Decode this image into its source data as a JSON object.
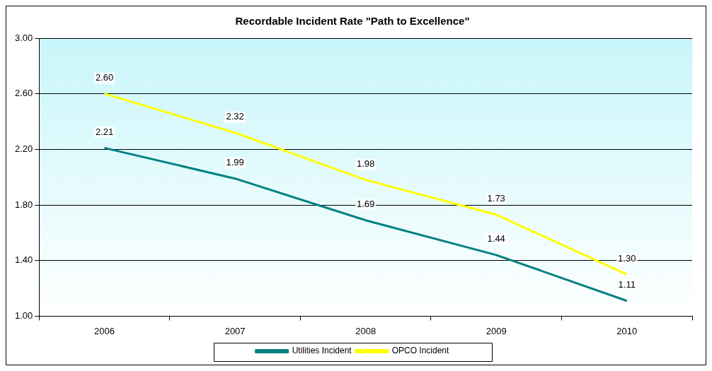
{
  "chart_data": {
    "type": "line",
    "title": "Recordable Incident Rate \"Path to Excellence\"",
    "categories": [
      "2006",
      "2007",
      "2008",
      "2009",
      "2010"
    ],
    "series": [
      {
        "name": "Utilities Incident",
        "color": "#008080",
        "values": [
          2.21,
          1.99,
          1.69,
          1.44,
          1.11
        ],
        "value_labels": [
          "2.21",
          "1.99",
          "1.69",
          "1.44",
          "1.11"
        ]
      },
      {
        "name": "OPCO Incident",
        "color": "#ffff00",
        "values": [
          2.6,
          2.32,
          1.98,
          1.73,
          1.3
        ],
        "value_labels": [
          "2.60",
          "2.32",
          "1.98",
          "1.73",
          "1.30"
        ]
      }
    ],
    "ylim": [
      1,
      3
    ],
    "yticks": [
      {
        "value": 1,
        "label": "1.00"
      },
      {
        "value": 1.4,
        "label": "1.40"
      },
      {
        "value": 1.8,
        "label": "1.80"
      },
      {
        "value": 2.2,
        "label": "2.20"
      },
      {
        "value": 2.6,
        "label": "2.60"
      },
      {
        "value": 3,
        "label": "3.00"
      }
    ],
    "grid": "y",
    "legend": "bottom",
    "marker": "none",
    "line_style": "solid"
  }
}
